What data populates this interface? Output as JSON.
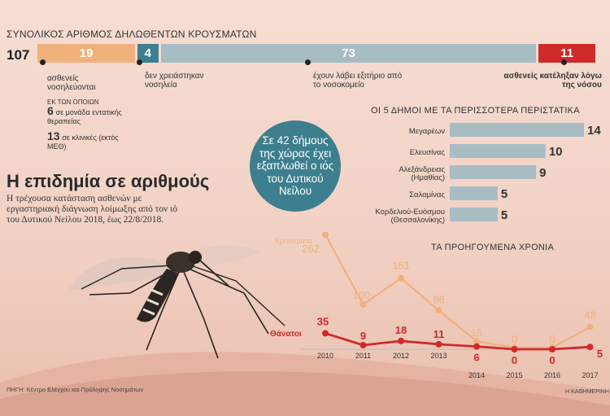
{
  "summary": {
    "title": "ΣΥΝΟΛΙΚΟΣ ΑΡΙΘΜΟΣ ΔΗΛΩΘΕΝΤΩΝ ΚΡΟΥΣΜΑΤΩΝ",
    "total": "107",
    "segments": [
      {
        "value": 19,
        "label": "19",
        "color": "#f0b07c"
      },
      {
        "value": 4,
        "label": "4",
        "color": "#3d7f8e"
      },
      {
        "value": 73,
        "label": "73",
        "color": "#a8bcc3"
      },
      {
        "value": 11,
        "label": "11",
        "color": "#cf2a2a"
      }
    ],
    "notes": {
      "hospitalized": "ασθενείς νοσηλεύονται",
      "of_which": "ΕΚ ΤΩΝ ΟΠΟΙΩΝ",
      "icu_number": "6",
      "icu_text": "σε μονάδα εντατικής θεραπείας",
      "clinic_number": "13",
      "clinic_text": "σε κλινικές (εκτός ΜΕΘ)",
      "no_hosp": "δεν χρειάστηκαν νοσηλεία",
      "discharged": "έχουν λάβει εξιτήριο από το νοσοκομείο",
      "died": "ασθενείς κατέληξαν λόγω της νόσου"
    }
  },
  "headline": "Η επιδημία σε αριθμούς",
  "subtext": "Η τρέχουσα κατάσταση ασθενών με εργαστηριακή διάγνωση λοίμωξης από τον ιό του Δυτικού Νείλου 2018, έως 22/8/2018.",
  "bubble": "Σε 42 δήμους της χώρας έχει εξαπλωθεί ο ιός του Δυτικού Νείλου",
  "source": "ΠΗΓΗ: Κέντρο Ελέγχου και Πρόληψης Νοσημάτων",
  "credit": "Η ΚΑΘΗΜΕΡΙΝΗ",
  "colors": {
    "orange": "#f0b07c",
    "teal": "#3d7f8e",
    "gray": "#a8bcc3",
    "red": "#cf2a2a",
    "bar": "#a8bcc3"
  },
  "chart_data": [
    {
      "type": "bar",
      "title": "ΟΙ 5 ΔΗΜΟΙ ΜΕ ΤΑ ΠΕΡΙΣΣΟΤΕΡΑ ΠΕΡΙΣΤΑΤΙΚΑ",
      "categories": [
        "Μεγαρέων",
        "Ελευσίνας",
        "Αλεξάνδρειας (Ημαθίας)",
        "Σαλαμίνας",
        "Κορδελιού-Ευόσμου (Θεσσαλονίκης)"
      ],
      "values": [
        14,
        10,
        9,
        5,
        5
      ],
      "xlim": [
        0,
        14
      ]
    },
    {
      "type": "line",
      "title": "ΤΑ ΠΡΟΗΓΟΥΜΕΝΑ ΧΡΟΝΙΑ",
      "x": [
        "2010",
        "2011",
        "2012",
        "2013",
        "2014",
        "2015",
        "2016",
        "2017"
      ],
      "series": [
        {
          "name": "Κρούσματα",
          "values": [
            262,
            100,
            161,
            86,
            15,
            0,
            0,
            48
          ],
          "color": "#f0b07c"
        },
        {
          "name": "Θάνατοι",
          "values": [
            35,
            9,
            18,
            11,
            6,
            0,
            0,
            5
          ],
          "color": "#cf2a2a"
        }
      ]
    }
  ]
}
